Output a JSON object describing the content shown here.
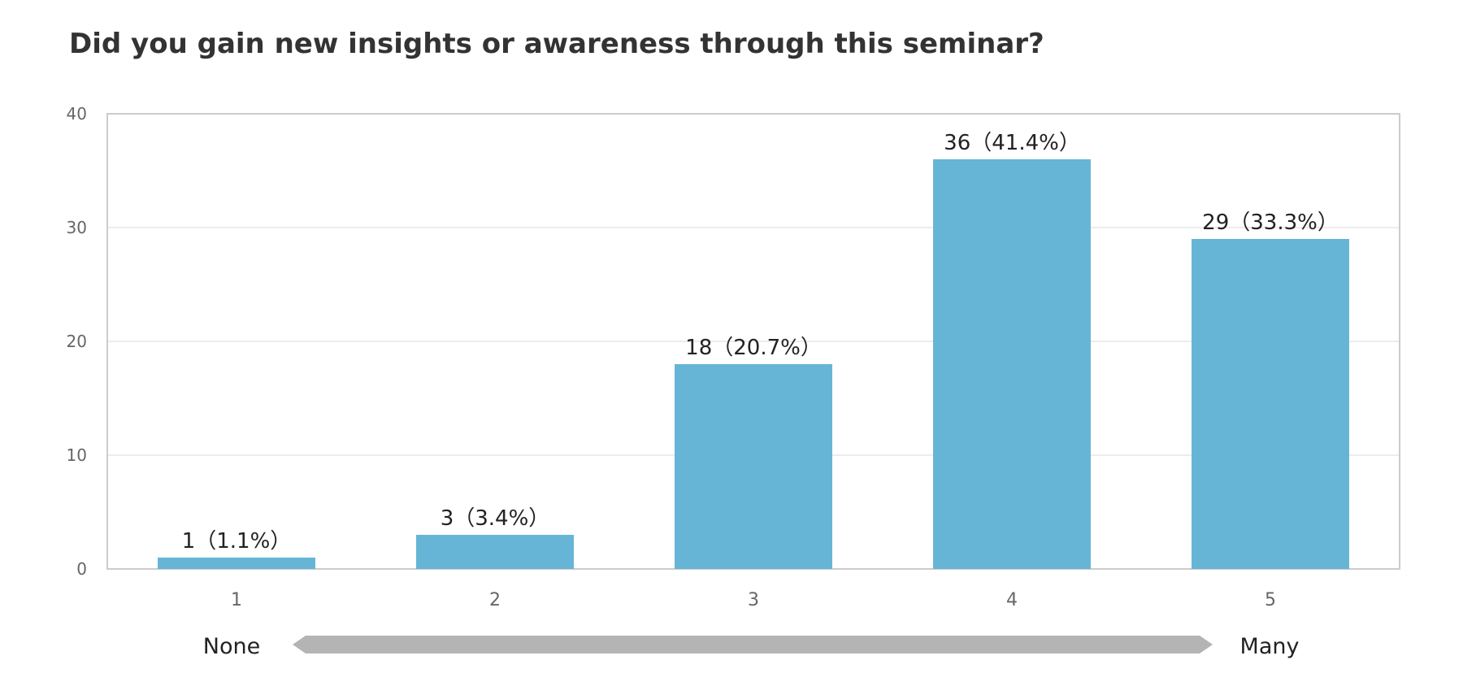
{
  "chart_data": {
    "type": "bar",
    "title": "Did you gain new insights or awareness through this seminar?",
    "categories": [
      "1",
      "2",
      "3",
      "4",
      "5"
    ],
    "values": [
      1,
      3,
      18,
      36,
      29
    ],
    "data_labels": [
      "1（1.1%）",
      "3（3.4%）",
      "18（20.7%）",
      "36（41.4%）",
      "29（33.3%）"
    ],
    "ylim": [
      0,
      40
    ],
    "yticks": [
      "0",
      "10",
      "20",
      "30",
      "40"
    ],
    "grid": true,
    "legend": "none",
    "colors": {
      "bar": "#66b5d6",
      "arrow": "#b4b4b4",
      "grid": "#e6e6e6",
      "frame": "#cccccc"
    },
    "scale": {
      "low_label": "None",
      "high_label": "Many"
    }
  }
}
